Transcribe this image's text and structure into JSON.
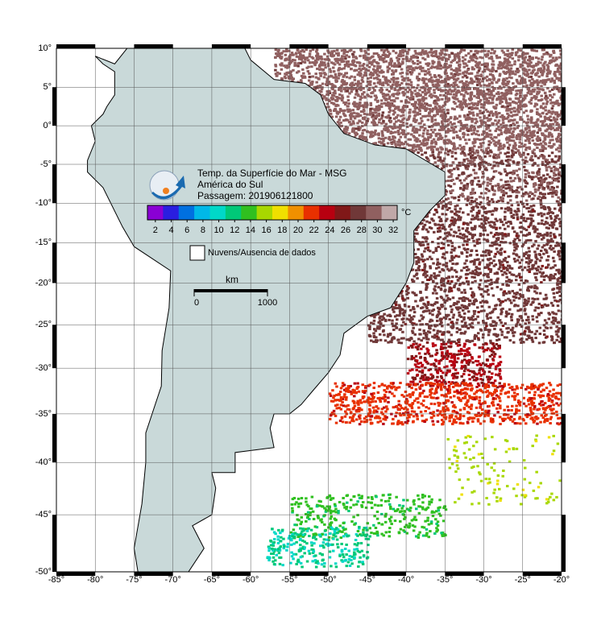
{
  "map": {
    "title": [
      "Temp. da Superfície do Mar - MSG",
      "América do Sul",
      "Passagem: 201906121800"
    ],
    "lat_ticks": [
      {
        "value": 10,
        "label": "10°"
      },
      {
        "value": 5,
        "label": "5°"
      },
      {
        "value": 0,
        "label": "0°"
      },
      {
        "value": -5,
        "label": "-5°"
      },
      {
        "value": -10,
        "label": "-10°"
      },
      {
        "value": -15,
        "label": "-15°"
      },
      {
        "value": -20,
        "label": "-20°"
      },
      {
        "value": -25,
        "label": "-25°"
      },
      {
        "value": -30,
        "label": "-30°"
      },
      {
        "value": -35,
        "label": "-35°"
      },
      {
        "value": -40,
        "label": "-40°"
      },
      {
        "value": -45,
        "label": "-45°"
      },
      {
        "value": -50,
        "label": "-50°"
      }
    ],
    "lon_ticks": [
      {
        "value": -85,
        "label": "-85°"
      },
      {
        "value": -80,
        "label": "-80°"
      },
      {
        "value": -75,
        "label": "-75°"
      },
      {
        "value": -70,
        "label": "-70°"
      },
      {
        "value": -65,
        "label": "-65°"
      },
      {
        "value": -60,
        "label": "-60°"
      },
      {
        "value": -55,
        "label": "-55°"
      },
      {
        "value": -50,
        "label": "-50°"
      },
      {
        "value": -45,
        "label": "-45°"
      },
      {
        "value": -40,
        "label": "-40°"
      },
      {
        "value": -35,
        "label": "-35°"
      },
      {
        "value": -30,
        "label": "-30°"
      },
      {
        "value": -25,
        "label": "-25°"
      },
      {
        "value": -20,
        "label": "-20°"
      }
    ],
    "colorbar": {
      "unit": "°C",
      "range": [
        1,
        32.5
      ],
      "ticks": [
        2,
        4,
        6,
        8,
        10,
        12,
        14,
        16,
        18,
        20,
        22,
        24,
        26,
        28,
        30,
        32
      ],
      "colors": [
        "#8a00d4",
        "#2a1ee0",
        "#0070e0",
        "#00b8e8",
        "#00d8c8",
        "#00c878",
        "#30c020",
        "#a8d800",
        "#f0e000",
        "#f09000",
        "#e83000",
        "#b80010",
        "#801818",
        "#703838",
        "#906060",
        "#c0a8a8"
      ]
    },
    "legend": "Nuvens/Ausencia de dados",
    "scale": {
      "unit": "km",
      "ticks": [
        0,
        1000
      ]
    }
  }
}
